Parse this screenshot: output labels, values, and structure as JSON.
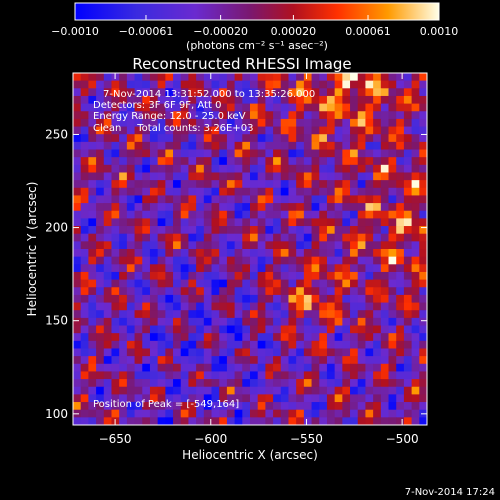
{
  "chart_data": {
    "type": "heatmap",
    "title": "Reconstructed RHESSI Image",
    "xlabel": "Heliocentric X (arcsec)",
    "ylabel": "Heliocentric Y (arcsec)",
    "xlim": [
      -672,
      -487
    ],
    "ylim": [
      94,
      283
    ],
    "x_ticks": [
      -650,
      -600,
      -550,
      -500
    ],
    "x_tick_labels": [
      "−650",
      "−600",
      "−550",
      "−500"
    ],
    "y_ticks": [
      100,
      150,
      200,
      250
    ],
    "y_tick_labels": [
      "100",
      "150",
      "200",
      "250"
    ],
    "colorbar": {
      "range": [
        -0.001,
        0.001
      ],
      "ticks": [
        -0.001,
        -0.00061,
        -0.0002,
        0.0002,
        0.00061,
        0.001
      ],
      "tick_labels": [
        "−0.0010",
        "−0.00061",
        "−0.00020",
        "0.00020",
        "0.00061",
        "0.0010"
      ],
      "unit_label": "(photons cm⁻² s⁻¹ asec⁻²)",
      "colors": [
        "#0000ff",
        "#6a2ad0",
        "#7a1870",
        "#a01030",
        "#ff2000",
        "#ff9000",
        "#ffffe0"
      ]
    },
    "annotations": {
      "time": "7-Nov-2014 13:31:52.000 to 13:35:26.000",
      "detectors": "Detectors: 3F 6F 9F, Att 0",
      "energy": "Energy Range: 12.0 - 25.0 keV",
      "clean": "Clean     Total counts: 3.26E+03",
      "peak": "Position of Peak = [-549,164]"
    },
    "peak": {
      "x": -549,
      "y": 164
    },
    "grid": false
  },
  "footer": {
    "timestamp": "7-Nov-2014 17:24"
  }
}
